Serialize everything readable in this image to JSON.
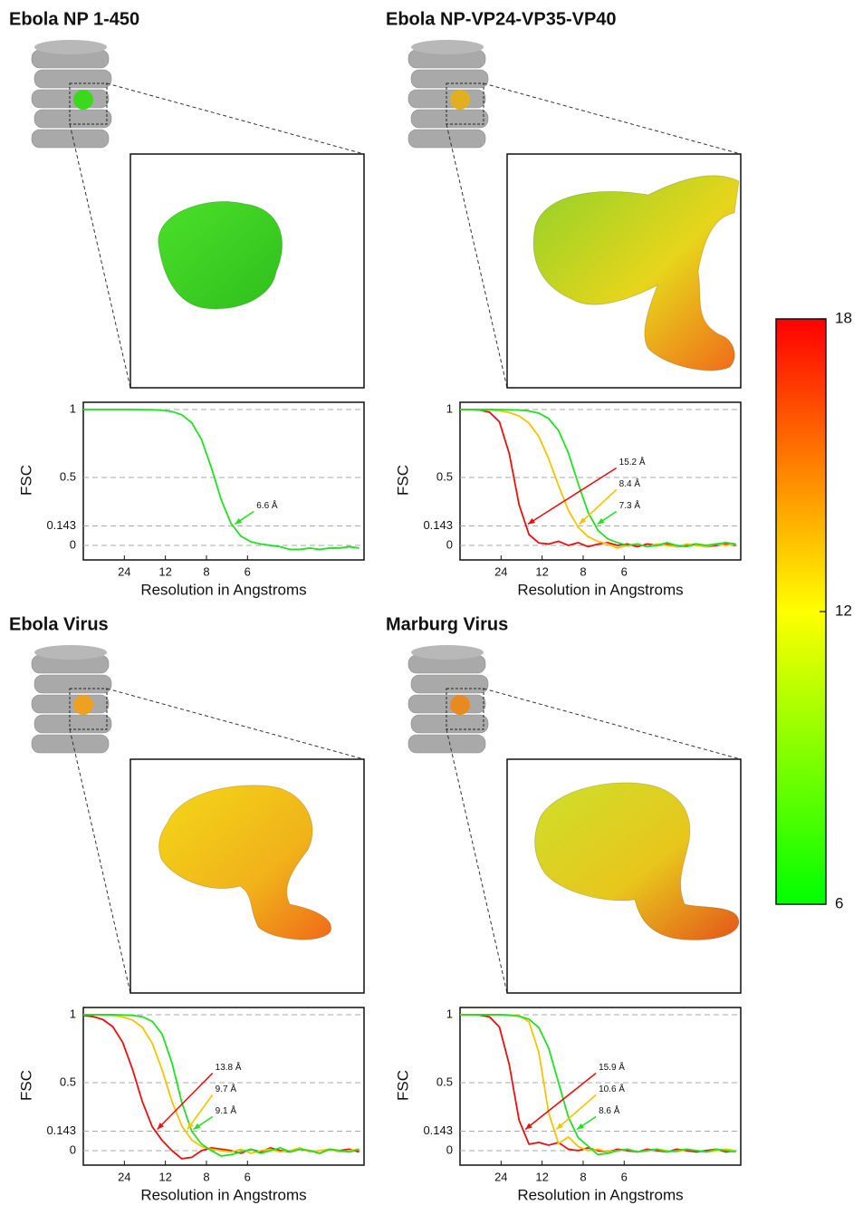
{
  "chart_data": [
    {
      "type": "line",
      "title": "Ebola NP 1-450",
      "xlabel": "Resolution in Angstroms",
      "ylabel": "FSC",
      "x": [
        0,
        0.01,
        0.02,
        0.03,
        0.04,
        0.05,
        0.06,
        0.07,
        0.08,
        0.09,
        0.1,
        0.11,
        0.12,
        0.13,
        0.14,
        0.15,
        0.16,
        0.17,
        0.18,
        0.19,
        0.2,
        0.21,
        0.22,
        0.23,
        0.24,
        0.25,
        0.26,
        0.27,
        0.28
      ],
      "xlim": [
        0,
        0.285
      ],
      "xticks": [
        {
          "value": 0.04167,
          "label": "24"
        },
        {
          "value": 0.08333,
          "label": "12"
        },
        {
          "value": 0.125,
          "label": "8"
        },
        {
          "value": 0.16667,
          "label": "6"
        }
      ],
      "ylim": [
        -0.107,
        1.053
      ],
      "yticks": [
        0,
        0.143,
        0.5,
        1
      ],
      "grid": true,
      "series": [
        {
          "color": "#22e022",
          "resolution_label": "6.6 Å",
          "values": [
            1,
            1,
            1,
            1,
            1,
            1,
            0.999,
            0.998,
            0.994,
            0.985,
            0.961,
            0.903,
            0.779,
            0.572,
            0.336,
            0.161,
            0.068,
            0.027,
            0.01,
            0.0,
            -0.01,
            -0.03,
            -0.03,
            -0.02,
            -0.03,
            -0.02,
            -0.02,
            -0.01,
            -0.02
          ]
        }
      ]
    },
    {
      "type": "line",
      "title": "Ebola NP-VP24-VP35-VP40",
      "xlabel": "Resolution in Angstroms",
      "ylabel": "FSC",
      "x": [
        0,
        0.01,
        0.02,
        0.03,
        0.04,
        0.05,
        0.06,
        0.07,
        0.08,
        0.09,
        0.1,
        0.11,
        0.12,
        0.13,
        0.14,
        0.15,
        0.16,
        0.17,
        0.18,
        0.19,
        0.2,
        0.21,
        0.22,
        0.23,
        0.24,
        0.25,
        0.26,
        0.27,
        0.28
      ],
      "xlim": [
        0,
        0.285
      ],
      "xticks": [
        {
          "value": 0.04167,
          "label": "24"
        },
        {
          "value": 0.08333,
          "label": "12"
        },
        {
          "value": 0.125,
          "label": "8"
        },
        {
          "value": 0.16667,
          "label": "6"
        }
      ],
      "ylim": [
        -0.107,
        1.053
      ],
      "yticks": [
        0,
        0.143,
        0.5,
        1
      ],
      "grid": true,
      "series": [
        {
          "color": "#e81010",
          "resolution_label": "15.2 Å",
          "values": [
            1,
            0.999,
            0.996,
            0.98,
            0.909,
            0.675,
            0.298,
            0.08,
            0.018,
            0.01,
            0.03,
            0.0,
            0.02,
            -0.01,
            0.01,
            0.02,
            0.0,
            0.01,
            -0.01,
            0.01,
            0.0,
            0.01,
            -0.01,
            0.0,
            0.01,
            -0.01,
            0.0,
            0.01,
            0.0
          ]
        },
        {
          "color": "#f5c400",
          "resolution_label": "8.4 Å",
          "values": [
            1,
            1,
            0.998,
            0.996,
            0.99,
            0.978,
            0.952,
            0.9,
            0.8,
            0.637,
            0.44,
            0.258,
            0.133,
            0.064,
            0.03,
            0.01,
            -0.02,
            0.0,
            0.01,
            -0.01,
            0.01,
            0.0,
            -0.01,
            0.01,
            0.0,
            -0.01,
            0.01,
            0.0,
            0.01
          ]
        },
        {
          "color": "#22e022",
          "resolution_label": "7.3 Å",
          "values": [
            1,
            1,
            1,
            1,
            0.999,
            0.998,
            0.996,
            0.989,
            0.973,
            0.933,
            0.845,
            0.68,
            0.453,
            0.244,
            0.111,
            0.047,
            0.02,
            0.0,
            0.01,
            -0.01,
            0.0,
            0.02,
            0.0,
            -0.01,
            0.01,
            0.0,
            0.01,
            0.02,
            0.01
          ]
        }
      ]
    },
    {
      "type": "line",
      "title": "Ebola Virus",
      "xlabel": "Resolution in Angstroms",
      "ylabel": "FSC",
      "x": [
        0,
        0.01,
        0.02,
        0.03,
        0.04,
        0.05,
        0.06,
        0.07,
        0.08,
        0.09,
        0.1,
        0.11,
        0.12,
        0.13,
        0.14,
        0.15,
        0.16,
        0.17,
        0.18,
        0.19,
        0.2,
        0.21,
        0.22,
        0.23,
        0.24,
        0.25,
        0.26,
        0.27,
        0.28
      ],
      "xlim": [
        0,
        0.285
      ],
      "xticks": [
        {
          "value": 0.04167,
          "label": "24"
        },
        {
          "value": 0.08333,
          "label": "12"
        },
        {
          "value": 0.125,
          "label": "8"
        },
        {
          "value": 0.16667,
          "label": "6"
        }
      ],
      "ylim": [
        -0.107,
        1.053
      ],
      "yticks": [
        0,
        0.143,
        0.5,
        1
      ],
      "grid": true,
      "series": [
        {
          "color": "#e81010",
          "resolution_label": "13.8 Å",
          "values": [
            0.995,
            0.986,
            0.964,
            0.911,
            0.796,
            0.597,
            0.359,
            0.175,
            0.075,
            0.0,
            -0.06,
            -0.05,
            0.0,
            0.02,
            0.01,
            0.0,
            -0.02,
            0.01,
            -0.01,
            0.02,
            0.0,
            -0.01,
            0.01,
            0.0,
            -0.02,
            0.01,
            0.0,
            0.01,
            -0.01
          ]
        },
        {
          "color": "#f5c400",
          "resolution_label": "9.7 Å",
          "values": [
            1,
            1,
            0.998,
            0.994,
            0.984,
            0.961,
            0.906,
            0.789,
            0.595,
            0.362,
            0.182,
            0.079,
            0.03,
            0.01,
            0.0,
            -0.01,
            0.01,
            -0.02,
            0.0,
            0.01,
            -0.01,
            0.0,
            0.02,
            -0.01,
            0.0,
            0.01,
            -0.01,
            0.0,
            0.01
          ]
        },
        {
          "color": "#22e022",
          "resolution_label": "9.1 Å",
          "values": [
            1,
            1,
            1,
            1,
            0.998,
            0.995,
            0.985,
            0.951,
            0.857,
            0.646,
            0.354,
            0.143,
            0.048,
            0.0,
            -0.04,
            -0.03,
            -0.01,
            0.01,
            -0.02,
            0.0,
            0.02,
            -0.01,
            0.01,
            0.0,
            -0.02,
            0.01,
            0.0,
            -0.01,
            0.01
          ]
        }
      ]
    },
    {
      "type": "line",
      "title": "Marburg Virus",
      "xlabel": "Resolution in Angstroms",
      "ylabel": "FSC",
      "x": [
        0,
        0.01,
        0.02,
        0.03,
        0.04,
        0.05,
        0.06,
        0.07,
        0.08,
        0.09,
        0.1,
        0.11,
        0.12,
        0.13,
        0.14,
        0.15,
        0.16,
        0.17,
        0.18,
        0.19,
        0.2,
        0.21,
        0.22,
        0.23,
        0.24,
        0.25,
        0.26,
        0.27,
        0.28
      ],
      "xlim": [
        0,
        0.285
      ],
      "xticks": [
        {
          "value": 0.04167,
          "label": "24"
        },
        {
          "value": 0.08333,
          "label": "12"
        },
        {
          "value": 0.125,
          "label": "8"
        },
        {
          "value": 0.16667,
          "label": "6"
        }
      ],
      "ylim": [
        -0.107,
        1.053
      ],
      "yticks": [
        0,
        0.143,
        0.5,
        1
      ],
      "grid": true,
      "series": [
        {
          "color": "#e81010",
          "resolution_label": "15.9 Å",
          "values": [
            1,
            1,
            0.997,
            0.984,
            0.909,
            0.632,
            0.222,
            0.047,
            0.06,
            0.04,
            0.06,
            0.01,
            0.0,
            0.02,
            0.0,
            -0.01,
            0.01,
            0.0,
            -0.01,
            0.01,
            0.0,
            -0.01,
            0.01,
            0.0,
            -0.01,
            0.0,
            0.01,
            -0.01,
            0.0
          ]
        },
        {
          "color": "#f5c400",
          "resolution_label": "10.6 Å",
          "values": [
            1,
            1,
            1,
            1,
            1,
            0.999,
            0.992,
            0.948,
            0.723,
            0.277,
            0.052,
            0.1,
            0.03,
            0.0,
            0.01,
            -0.01,
            0.0,
            0.01,
            -0.01,
            0.0,
            0.01,
            0.0,
            -0.01,
            0.01,
            0.0,
            -0.01,
            0.0,
            0.01,
            0.0
          ]
        },
        {
          "color": "#22e022",
          "resolution_label": "8.6 Å",
          "values": [
            1,
            1,
            1,
            1,
            1,
            0.996,
            0.989,
            0.967,
            0.905,
            0.754,
            0.5,
            0.246,
            0.095,
            0.033,
            -0.03,
            -0.02,
            0.0,
            0.01,
            -0.01,
            0.0,
            0.01,
            -0.01,
            0.0,
            0.01,
            0.0,
            -0.01,
            0.01,
            0.0,
            -0.01
          ]
        }
      ]
    }
  ],
  "colorbar": {
    "lim": [
      6,
      18
    ],
    "ticks": [
      6,
      12,
      18
    ],
    "colors": [
      "#00ff00",
      "#ffff00",
      "#ff0000"
    ]
  }
}
